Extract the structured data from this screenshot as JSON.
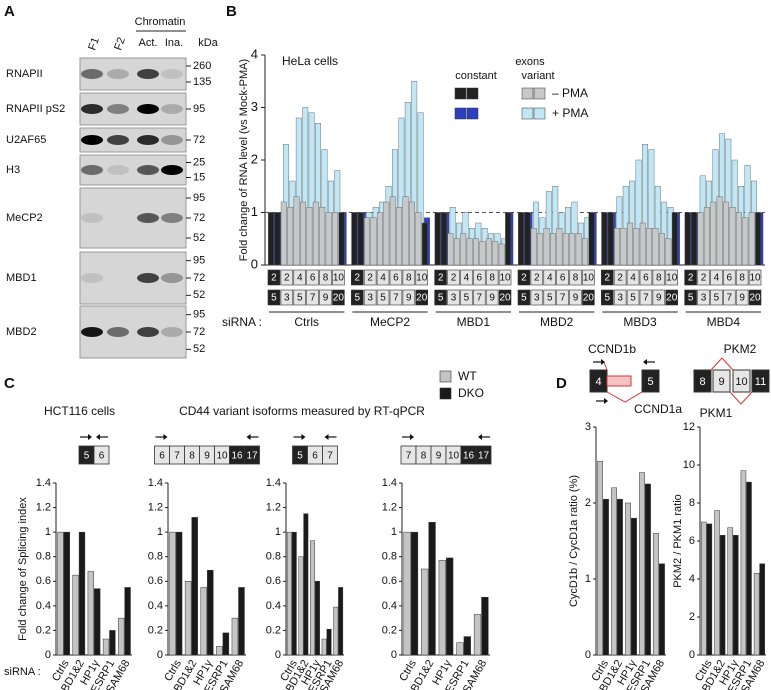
{
  "panel_labels": [
    "A",
    "B",
    "C",
    "D"
  ],
  "blot": {
    "lanes": [
      "F1",
      "F2"
    ],
    "chromatin": "Chromatin",
    "chromatin_lanes": [
      "Act.",
      "Ina."
    ],
    "unit": "kDa",
    "rows": [
      {
        "label": "RNAPII",
        "markers": [
          260,
          135
        ]
      },
      {
        "label": "RNAPII pS2",
        "markers": [
          95
        ]
      },
      {
        "label": "U2AF65",
        "markers": [
          72
        ]
      },
      {
        "label": "H3",
        "markers": [
          25,
          15
        ]
      },
      {
        "label": "MeCP2",
        "markers": [
          95,
          72,
          52
        ]
      },
      {
        "label": "MBD1",
        "markers": [
          95,
          72,
          52
        ]
      },
      {
        "label": "MBD2",
        "markers": [
          95,
          72,
          52
        ]
      }
    ]
  },
  "panel_c": {
    "legend": [
      {
        "name": "WT",
        "color": "#c4c4c4"
      },
      {
        "name": "DKO",
        "color": "#1a1a1a"
      }
    ]
  },
  "chart_data": [
    {
      "type": "overlap-bar",
      "annotation": "HeLa cells",
      "ylabel": "Fold change of RNA level (vs Mock-PMA)",
      "ylim": [
        0,
        4
      ],
      "yticks": [
        0,
        1,
        2,
        3,
        4
      ],
      "hline": 1,
      "x_prefix": "siRNA :",
      "groups": [
        "Ctrls",
        "MeCP2",
        "MBD1",
        "MBD2",
        "MBD3",
        "MBD4"
      ],
      "exon_labels": [
        "2",
        "5",
        "2",
        "3",
        "4",
        "5",
        "6",
        "7",
        "8",
        "9",
        "10",
        "20"
      ],
      "legend_title": "exons",
      "legend_columns": [
        "constant",
        "variant"
      ],
      "series": [
        {
          "name": "– PMA",
          "color": "#c8c8c8",
          "constant_color": "#222222",
          "values": [
            1,
            1,
            1.2,
            1.1,
            1.3,
            1.2,
            1.1,
            1.2,
            1.1,
            1.0,
            1.0,
            1,
            1,
            1,
            0.9,
            0.9,
            1.0,
            1.2,
            1.3,
            1.1,
            1.3,
            1.2,
            1.0,
            0.8,
            1,
            1,
            0.6,
            0.5,
            0.6,
            0.5,
            0.5,
            0.45,
            0.5,
            0.45,
            0.4,
            1,
            1,
            1,
            0.7,
            0.6,
            0.7,
            0.6,
            0.7,
            0.6,
            0.6,
            0.6,
            0.5,
            1,
            1,
            1,
            0.7,
            0.7,
            0.8,
            0.7,
            0.8,
            0.7,
            0.7,
            0.6,
            0.5,
            1,
            1,
            1,
            1.0,
            1.1,
            1.2,
            1.3,
            1.2,
            1.1,
            1.0,
            0.9,
            1.0,
            1
          ]
        },
        {
          "name": "+ PMA",
          "color": "#bfe7f6",
          "constant_color": "#2b3fbf",
          "values": [
            1,
            1,
            2.3,
            1.6,
            2.8,
            3.0,
            2.9,
            2.7,
            2.2,
            1.6,
            1.8,
            1,
            1,
            1,
            1.0,
            1.1,
            1.2,
            1.5,
            2.2,
            2.8,
            3.1,
            3.5,
            2.9,
            0.9,
            1,
            1,
            1.1,
            0.8,
            1.0,
            0.7,
            0.8,
            0.7,
            0.6,
            0.6,
            0.5,
            1,
            1,
            1,
            1.2,
            0.9,
            1.4,
            1.5,
            1.0,
            1.1,
            1.2,
            0.8,
            0.9,
            1,
            1,
            1,
            1.3,
            1.5,
            1.6,
            2.0,
            2.3,
            2.2,
            1.5,
            1.2,
            1.1,
            1,
            1,
            1,
            1.7,
            1.6,
            2.2,
            2.5,
            2.4,
            2.0,
            1.5,
            1.9,
            1.6,
            1
          ]
        }
      ]
    },
    {
      "type": "bar",
      "annotation": "HCT116 cells",
      "ylabel": "Fold change of Splicing index",
      "x_prefix": "siRNA :",
      "exons": [
        "5",
        "6"
      ],
      "categories": [
        "Ctrls",
        "MBD1&2",
        "HP1γ",
        "ESRP1",
        "SAM68"
      ],
      "ylim": [
        0,
        1.4
      ],
      "yticks": [
        0,
        0.2,
        0.4,
        0.6,
        0.8,
        1,
        1.2,
        1.4
      ],
      "series": [
        {
          "color": "#c4c4c4",
          "values": [
            1,
            0.65,
            0.68,
            0.13,
            0.3
          ]
        },
        {
          "color": "#1a1a1a",
          "values": [
            1,
            1.0,
            0.54,
            0.2,
            0.55
          ]
        }
      ]
    },
    {
      "type": "bar",
      "title": "CD44 variant isoforms measured by RT-qPCR",
      "exons": [
        "6",
        "7",
        "8",
        "9",
        "10",
        "16",
        "17"
      ],
      "categories": [
        "Ctrls",
        "MBD1&2",
        "HP1γ",
        "ESRP1",
        "SAM68"
      ],
      "ylim": [
        0,
        1.4
      ],
      "yticks": [
        0,
        0.2,
        0.4,
        0.6,
        0.8,
        1,
        1.2,
        1.4
      ],
      "series": [
        {
          "color": "#c4c4c4",
          "values": [
            1,
            0.6,
            0.55,
            0.07,
            0.3
          ]
        },
        {
          "color": "#1a1a1a",
          "values": [
            1,
            1.12,
            0.69,
            0.18,
            0.55
          ]
        }
      ]
    },
    {
      "type": "bar",
      "exons": [
        "5",
        "6",
        "7"
      ],
      "categories": [
        "Ctrls",
        "MBD1&2",
        "HP1γ",
        "ESRP1",
        "SAM68"
      ],
      "ylim": [
        0,
        1.4
      ],
      "yticks": [
        0,
        0.2,
        0.4,
        0.6,
        0.8,
        1,
        1.2,
        1.4
      ],
      "series": [
        {
          "color": "#c4c4c4",
          "values": [
            1,
            0.8,
            0.93,
            0.13,
            0.39
          ]
        },
        {
          "color": "#1a1a1a",
          "values": [
            1,
            1.15,
            0.6,
            0.21,
            0.55
          ]
        }
      ]
    },
    {
      "type": "bar",
      "exons": [
        "7",
        "8",
        "9",
        "10",
        "16",
        "17"
      ],
      "categories": [
        "Ctrls",
        "MBD1&2",
        "HP1γ",
        "ESRP1",
        "SAM68"
      ],
      "ylim": [
        0,
        1.4
      ],
      "yticks": [
        0,
        0.2,
        0.4,
        0.6,
        0.8,
        1,
        1.2,
        1.4
      ],
      "series": [
        {
          "color": "#c4c4c4",
          "values": [
            1,
            0.7,
            0.77,
            0.1,
            0.33
          ]
        },
        {
          "color": "#1a1a1a",
          "values": [
            1,
            1.08,
            0.79,
            0.15,
            0.47
          ]
        }
      ]
    },
    {
      "type": "bar",
      "ylabel": "CycD1b / CycD1a ratio (%)",
      "isoform_labels": [
        "CCND1b",
        "CCND1a"
      ],
      "exons": [
        "4",
        "5"
      ],
      "categories": [
        "Ctrls",
        "MBD1&2",
        "HP1γ",
        "ESRP1",
        "SAM68"
      ],
      "ylim": [
        0,
        3
      ],
      "yticks": [
        0,
        1,
        2,
        3
      ],
      "series": [
        {
          "color": "#c4c4c4",
          "values": [
            2.55,
            2.2,
            2.0,
            2.4,
            1.6
          ]
        },
        {
          "color": "#1a1a1a",
          "values": [
            2.05,
            2.05,
            1.8,
            2.25,
            1.2
          ]
        }
      ]
    },
    {
      "type": "bar",
      "ylabel": "PKM2 / PKM1 ratio",
      "isoform_labels": [
        "PKM2",
        "PKM1"
      ],
      "exons": [
        "8",
        "9",
        "10",
        "11"
      ],
      "categories": [
        "Ctrls",
        "MBD1&2",
        "HP1γ",
        "ESRP1",
        "SAM68"
      ],
      "ylim": [
        0,
        12
      ],
      "yticks": [
        0,
        2,
        4,
        6,
        8,
        10,
        12
      ],
      "series": [
        {
          "color": "#c4c4c4",
          "values": [
            7.0,
            7.6,
            6.7,
            9.7,
            4.3
          ]
        },
        {
          "color": "#1a1a1a",
          "values": [
            6.9,
            6.3,
            6.3,
            9.1,
            4.8
          ]
        }
      ]
    }
  ]
}
